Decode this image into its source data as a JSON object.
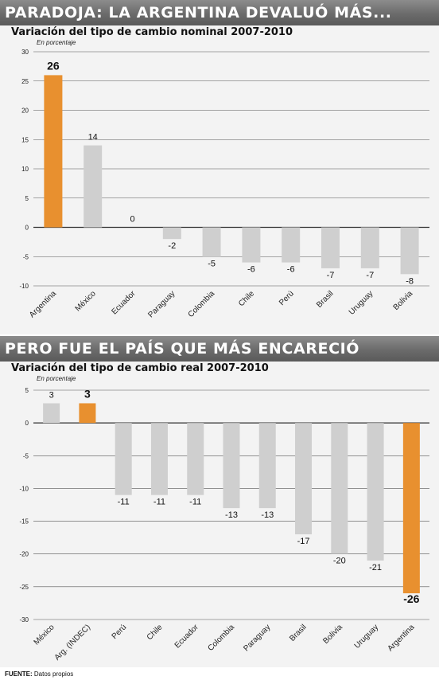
{
  "colors": {
    "highlight": "#e8902f",
    "neutral": "#cfcfcf",
    "grid": "#555555",
    "banner": "#6e6e6e"
  },
  "chart_data": [
    {
      "type": "bar",
      "banner": "PARADOJA: LA ARGENTINA DEVALUÓ MÁS...",
      "title": "Variación del tipo de cambio nominal 2007-2010",
      "unit": "En porcentaje",
      "categories": [
        "Argentina",
        "México",
        "Ecuador",
        "Paraguay",
        "Colombia",
        "Chile",
        "Perú",
        "Brasil",
        "Uruguay",
        "Bolivia"
      ],
      "values": [
        26,
        14,
        0,
        -2,
        -5,
        -6,
        -6,
        -7,
        -7,
        -8
      ],
      "highlight": [
        "Argentina"
      ],
      "ylim": [
        -10,
        30
      ],
      "yticks": [
        30,
        25,
        20,
        15,
        10,
        5,
        0,
        -5,
        -10
      ],
      "grid": true
    },
    {
      "type": "bar",
      "banner": "PERO FUE EL PAÍS QUE MÁS ENCARECIÓ",
      "title": "Variación del tipo de cambio real 2007-2010",
      "unit": "En porcentaje",
      "categories": [
        "México",
        "Arg. (INDEC)",
        "Perú",
        "Chile",
        "Ecuador",
        "Colombia",
        "Paraguay",
        "Brasil",
        "Bolivia",
        "Uruguay",
        "Argentina"
      ],
      "values": [
        3,
        3,
        -11,
        -11,
        -11,
        -13,
        -13,
        -17,
        -20,
        -21,
        -26
      ],
      "highlight": [
        "Arg. (INDEC)",
        "Argentina"
      ],
      "ylim": [
        -30,
        5
      ],
      "yticks": [
        5,
        0,
        -5,
        -10,
        -15,
        -20,
        -25,
        -30
      ],
      "grid": true
    }
  ],
  "footer": {
    "label": "FUENTE:",
    "text": "Datos propios"
  }
}
